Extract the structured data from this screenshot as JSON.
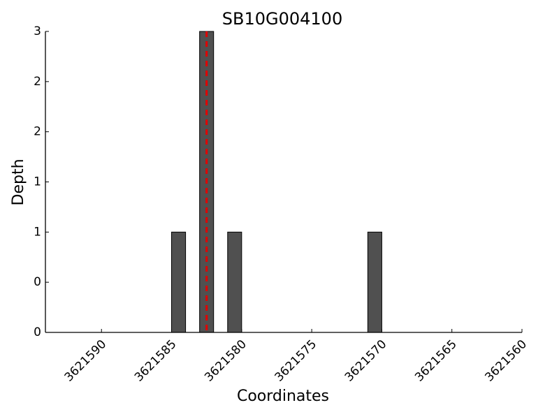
{
  "chart_data": {
    "type": "bar",
    "title": "SB10G004100",
    "x_label": "Coordinates",
    "y_label": "Depth",
    "x": [
      3621584.5,
      3621582.5,
      3621580.5,
      3621570.5
    ],
    "values": [
      1,
      3,
      1,
      1
    ],
    "color": "#505050",
    "marker_x": 3621582.5,
    "marker_color": "#e00000",
    "xlim": [
      3621594,
      3621560
    ],
    "xticks": [
      3621590,
      3621585,
      3621580,
      3621575,
      3621570,
      3621565,
      3621560
    ],
    "ylim": [
      0,
      3
    ],
    "yticks": [
      0,
      {
        "value": 0.5,
        "label": "0"
      },
      1,
      {
        "value": 1.5,
        "label": "1"
      },
      2,
      {
        "value": 2.5,
        "label": "2"
      },
      3
    ],
    "grid": false
  }
}
